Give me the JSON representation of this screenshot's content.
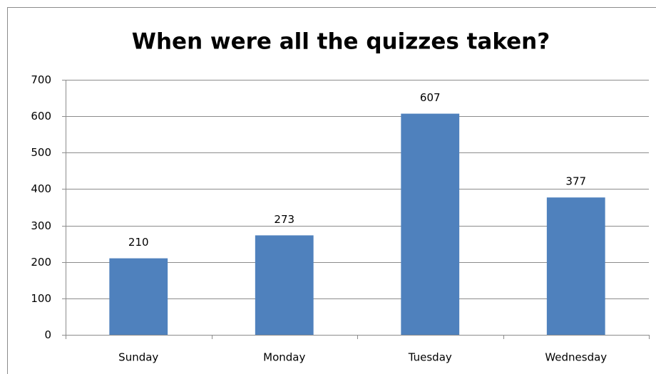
{
  "chart_data": {
    "type": "bar",
    "title": "When were all the quizzes taken?",
    "categories": [
      "Sunday",
      "Monday",
      "Tuesday",
      "Wednesday"
    ],
    "values": [
      210,
      273,
      607,
      377
    ],
    "color": "#4f81bd",
    "ylim": [
      0,
      700
    ],
    "yticks": [
      0,
      100,
      200,
      300,
      400,
      500,
      600,
      700
    ],
    "grid": true
  }
}
